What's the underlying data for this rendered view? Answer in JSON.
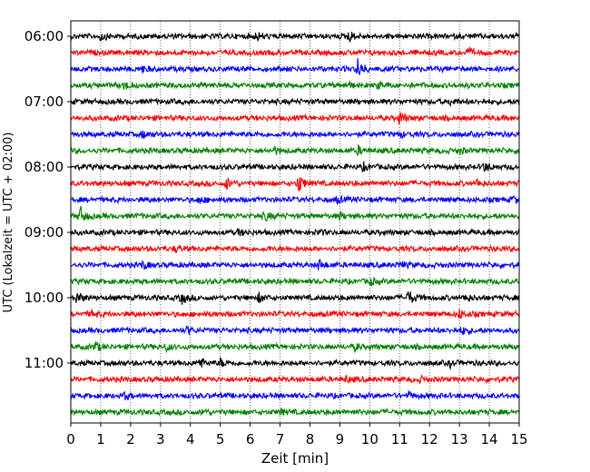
{
  "chart_data": {
    "type": "line",
    "title": "",
    "xlabel": "Zeit  [min]",
    "ylabel": "UTC (Lokalzeit = UTC + 02:00)",
    "xlim": [
      0,
      15
    ],
    "x_ticks": [
      0,
      1,
      2,
      3,
      4,
      5,
      6,
      7,
      8,
      9,
      10,
      11,
      12,
      13,
      14,
      15
    ],
    "x_tick_labels": [
      "0",
      "1",
      "2",
      "3",
      "4",
      "5",
      "6",
      "7",
      "8",
      "9",
      "10",
      "11",
      "12",
      "13",
      "14",
      "15"
    ],
    "y_tick_labels": [
      "06:00",
      "07:00",
      "08:00",
      "09:00",
      "10:00",
      "11:00"
    ],
    "y_tick_rows": [
      0,
      4,
      8,
      12,
      16,
      20
    ],
    "row_interval_minutes": 15,
    "row_colors": [
      "#000000",
      "#ff0000",
      "#0000ff",
      "#008000"
    ],
    "grid": {
      "vertical": true,
      "style": "dotted"
    },
    "series": [
      {
        "start": "06:00",
        "color": "#000000",
        "events": [
          [
            1.0,
            0.35
          ],
          [
            6.2,
            0.4
          ],
          [
            9.3,
            0.55
          ]
        ]
      },
      {
        "start": "06:15",
        "color": "#ff0000",
        "events": [
          [
            13.3,
            0.35
          ]
        ]
      },
      {
        "start": "06:30",
        "color": "#0000ff",
        "events": [
          [
            2.4,
            0.25
          ],
          [
            9.6,
            1.0
          ]
        ]
      },
      {
        "start": "06:45",
        "color": "#008000",
        "events": [
          [
            1.8,
            0.4
          ],
          [
            9.2,
            0.3
          ],
          [
            10.3,
            0.3
          ]
        ]
      },
      {
        "start": "07:00",
        "color": "#000000",
        "events": [
          [
            12.7,
            0.3
          ]
        ]
      },
      {
        "start": "07:15",
        "color": "#ff0000",
        "events": [
          [
            11.0,
            0.6
          ]
        ]
      },
      {
        "start": "07:30",
        "color": "#0000ff",
        "events": [
          [
            2.4,
            0.3
          ],
          [
            11.0,
            0.25
          ]
        ]
      },
      {
        "start": "07:45",
        "color": "#008000",
        "events": [
          [
            6.8,
            0.3
          ],
          [
            9.6,
            0.35
          ],
          [
            13.0,
            0.25
          ]
        ]
      },
      {
        "start": "08:00",
        "color": "#000000",
        "events": [
          [
            9.8,
            0.3
          ],
          [
            13.8,
            0.45
          ]
        ]
      },
      {
        "start": "08:15",
        "color": "#ff0000",
        "events": [
          [
            5.2,
            0.55
          ],
          [
            7.6,
            1.0
          ],
          [
            13.6,
            0.35
          ]
        ]
      },
      {
        "start": "08:30",
        "color": "#0000ff",
        "events": [
          [
            4.3,
            0.3
          ],
          [
            8.9,
            0.25
          ],
          [
            14.8,
            0.3
          ]
        ]
      },
      {
        "start": "08:45",
        "color": "#008000",
        "events": [
          [
            0.3,
            1.0
          ],
          [
            6.5,
            0.4
          ],
          [
            9.0,
            0.25
          ]
        ]
      },
      {
        "start": "09:00",
        "color": "#000000",
        "events": [
          [
            5.6,
            0.25
          ],
          [
            8.3,
            0.2
          ]
        ]
      },
      {
        "start": "09:15",
        "color": "#ff0000",
        "events": [
          [
            3.5,
            0.25
          ]
        ]
      },
      {
        "start": "09:30",
        "color": "#0000ff",
        "events": [
          [
            2.4,
            0.35
          ],
          [
            8.3,
            0.5
          ],
          [
            11.0,
            0.3
          ]
        ]
      },
      {
        "start": "09:45",
        "color": "#008000",
        "events": [
          [
            10.0,
            0.35
          ]
        ]
      },
      {
        "start": "10:00",
        "color": "#000000",
        "events": [
          [
            0.2,
            0.6
          ],
          [
            3.7,
            0.55
          ],
          [
            6.3,
            0.4
          ],
          [
            11.3,
            0.7
          ],
          [
            13.2,
            0.35
          ]
        ]
      },
      {
        "start": "10:15",
        "color": "#ff0000",
        "events": [
          [
            0.7,
            0.25
          ],
          [
            13.0,
            0.4
          ]
        ]
      },
      {
        "start": "10:30",
        "color": "#0000ff",
        "events": [
          [
            3.9,
            0.3
          ],
          [
            13.1,
            0.35
          ]
        ]
      },
      {
        "start": "10:45",
        "color": "#008000",
        "events": [
          [
            0.8,
            0.45
          ],
          [
            3.2,
            0.3
          ],
          [
            9.5,
            0.3
          ]
        ]
      },
      {
        "start": "11:00",
        "color": "#000000",
        "events": [
          [
            4.3,
            0.55
          ],
          [
            5.0,
            0.35
          ],
          [
            12.7,
            0.25
          ]
        ]
      },
      {
        "start": "11:15",
        "color": "#ff0000",
        "events": [
          [
            9.2,
            0.25
          ],
          [
            11.7,
            0.2
          ]
        ]
      },
      {
        "start": "11:30",
        "color": "#0000ff",
        "events": [
          [
            1.8,
            0.3
          ],
          [
            11.3,
            0.25
          ]
        ]
      },
      {
        "start": "11:45",
        "color": "#008000",
        "events": [
          [
            4.4,
            0.25
          ],
          [
            7.0,
            0.25
          ]
        ]
      }
    ]
  }
}
